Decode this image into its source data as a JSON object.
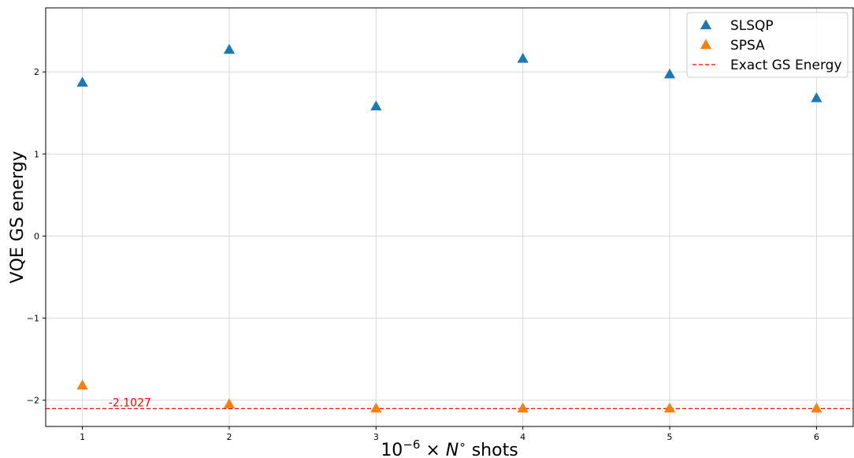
{
  "chart_data": {
    "type": "scatter",
    "x": [
      1,
      2,
      3,
      4,
      5,
      6
    ],
    "xticks": [
      "1",
      "2",
      "3",
      "4",
      "5",
      "6"
    ],
    "yticks": [
      "−2",
      "−1",
      "0",
      "1",
      "2"
    ],
    "xlabel": "10⁻⁶ × N° shots",
    "xlabel_parts": {
      "base": "10",
      "exp": "−6",
      "times": " × ",
      "var": "N",
      "deg": "∘",
      "rest": "  shots"
    },
    "ylabel": "VQE GS energy",
    "xlim": [
      0.75,
      6.25
    ],
    "ylim": [
      -2.32,
      2.78
    ],
    "grid": true,
    "legend_position": "top-right",
    "series": [
      {
        "name": "SLSQP",
        "marker": "triangle",
        "color": "#1f77b4",
        "values": [
          1.87,
          2.27,
          1.58,
          2.16,
          1.97,
          1.68
        ]
      },
      {
        "name": "SPSA",
        "marker": "triangle",
        "color": "#ff7f0e",
        "values": [
          -1.82,
          -2.05,
          -2.1,
          -2.1,
          -2.1,
          -2.1
        ]
      }
    ],
    "reference_line": {
      "name": "Exact GS Energy",
      "value": -2.1027,
      "color": "#ff0000",
      "style": "dashed"
    },
    "annotation": {
      "text": "-2.1027",
      "x": 1.2,
      "y": -2.1027,
      "color": "#ff0000"
    }
  }
}
